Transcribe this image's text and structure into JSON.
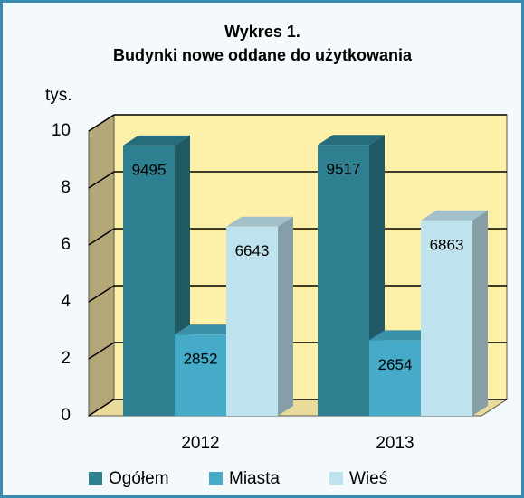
{
  "chart_data": {
    "type": "bar3d",
    "title": "Wykres 1.",
    "subtitle": "Budynki nowe oddane do użytkowania",
    "y_label": "tys.",
    "categories": [
      "2012",
      "2013"
    ],
    "series": [
      {
        "name": "Ogółem",
        "color": "#2e7f8f",
        "values": [
          9.495,
          9.517
        ],
        "value_labels": [
          "9495",
          "9517"
        ]
      },
      {
        "name": "Miasta",
        "color": "#46abc8",
        "values": [
          2.852,
          2.654
        ],
        "value_labels": [
          "2852",
          "2654"
        ]
      },
      {
        "name": "Wieś",
        "color": "#bfe3ee",
        "values": [
          6.643,
          6.863
        ],
        "value_labels": [
          "6643",
          "6863"
        ]
      }
    ],
    "ylim": [
      0,
      10
    ],
    "yticks": [
      0,
      2,
      4,
      6,
      8,
      10
    ],
    "grid": true
  }
}
